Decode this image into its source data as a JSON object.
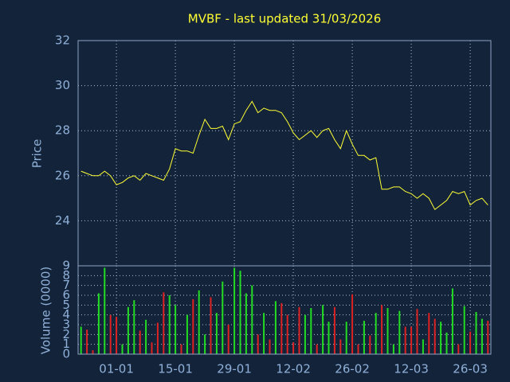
{
  "chart_data": [
    {
      "type": "line",
      "title": "MVBF - last updated 31/03/2026",
      "ylabel": "Price",
      "color": "#ffff33",
      "ylim": [
        22,
        32
      ],
      "yticks": [
        24,
        26,
        28,
        30,
        32
      ],
      "grid": true,
      "values": [
        26.2,
        26.1,
        26.0,
        26.0,
        26.2,
        26.0,
        25.6,
        25.7,
        25.9,
        26.0,
        25.8,
        26.1,
        26.0,
        25.9,
        25.8,
        26.3,
        27.2,
        27.1,
        27.1,
        27.0,
        27.8,
        28.5,
        28.1,
        28.1,
        28.2,
        27.6,
        28.3,
        28.4,
        28.9,
        29.3,
        28.8,
        29.0,
        28.9,
        28.9,
        28.8,
        28.4,
        27.9,
        27.6,
        27.8,
        28.0,
        27.7,
        28.0,
        28.1,
        27.6,
        27.2,
        28.0,
        27.4,
        26.9,
        26.9,
        26.7,
        26.8,
        25.4,
        25.4,
        25.5,
        25.5,
        25.3,
        25.2,
        25.0,
        25.2,
        25.0,
        24.5,
        24.7,
        24.9,
        25.3,
        25.2,
        25.3,
        24.7,
        24.9,
        25.0,
        24.7
      ]
    },
    {
      "type": "bar",
      "ylabel": "Volume (0000)",
      "up_color": "#22dd22",
      "down_color": "#dd2222",
      "ylim": [
        0,
        9
      ],
      "yticks": [
        0,
        1,
        2,
        3,
        4,
        5,
        6,
        7,
        8,
        9
      ],
      "grid": true,
      "categories": [
        null,
        null,
        null,
        null,
        null,
        null,
        "01-01",
        null,
        null,
        null,
        null,
        null,
        null,
        null,
        null,
        null,
        "15-01",
        null,
        null,
        null,
        null,
        null,
        null,
        null,
        null,
        null,
        "29-01",
        null,
        null,
        null,
        null,
        null,
        null,
        null,
        null,
        null,
        "12-02",
        null,
        null,
        null,
        null,
        null,
        null,
        null,
        null,
        null,
        "26-02",
        null,
        null,
        null,
        null,
        null,
        null,
        null,
        null,
        null,
        "12-03",
        null,
        null,
        null,
        null,
        null,
        null,
        null,
        null,
        null,
        "26-03",
        null,
        null,
        null
      ],
      "values": [
        2.8,
        2.5,
        0.4,
        6.2,
        8.8,
        4.0,
        3.8,
        1.0,
        4.8,
        5.5,
        2.4,
        3.5,
        1.2,
        3.2,
        6.3,
        6.0,
        5.0,
        1.0,
        4.0,
        5.6,
        6.5,
        2.0,
        5.8,
        4.2,
        7.4,
        3.0,
        8.8,
        8.5,
        6.2,
        7.0,
        2.0,
        4.2,
        1.5,
        5.4,
        5.2,
        4.0,
        1.2,
        4.8,
        4.0,
        4.7,
        1.0,
        5.0,
        3.3,
        4.8,
        1.5,
        3.3,
        6.1,
        1.0,
        3.4,
        1.9,
        4.2,
        5.0,
        4.7,
        1.0,
        4.4,
        2.8,
        2.8,
        4.6,
        1.5,
        4.2,
        3.6,
        3.3,
        2.2,
        6.7,
        1.0,
        4.9,
        2.3,
        4.3,
        3.6,
        3.4
      ]
    }
  ]
}
